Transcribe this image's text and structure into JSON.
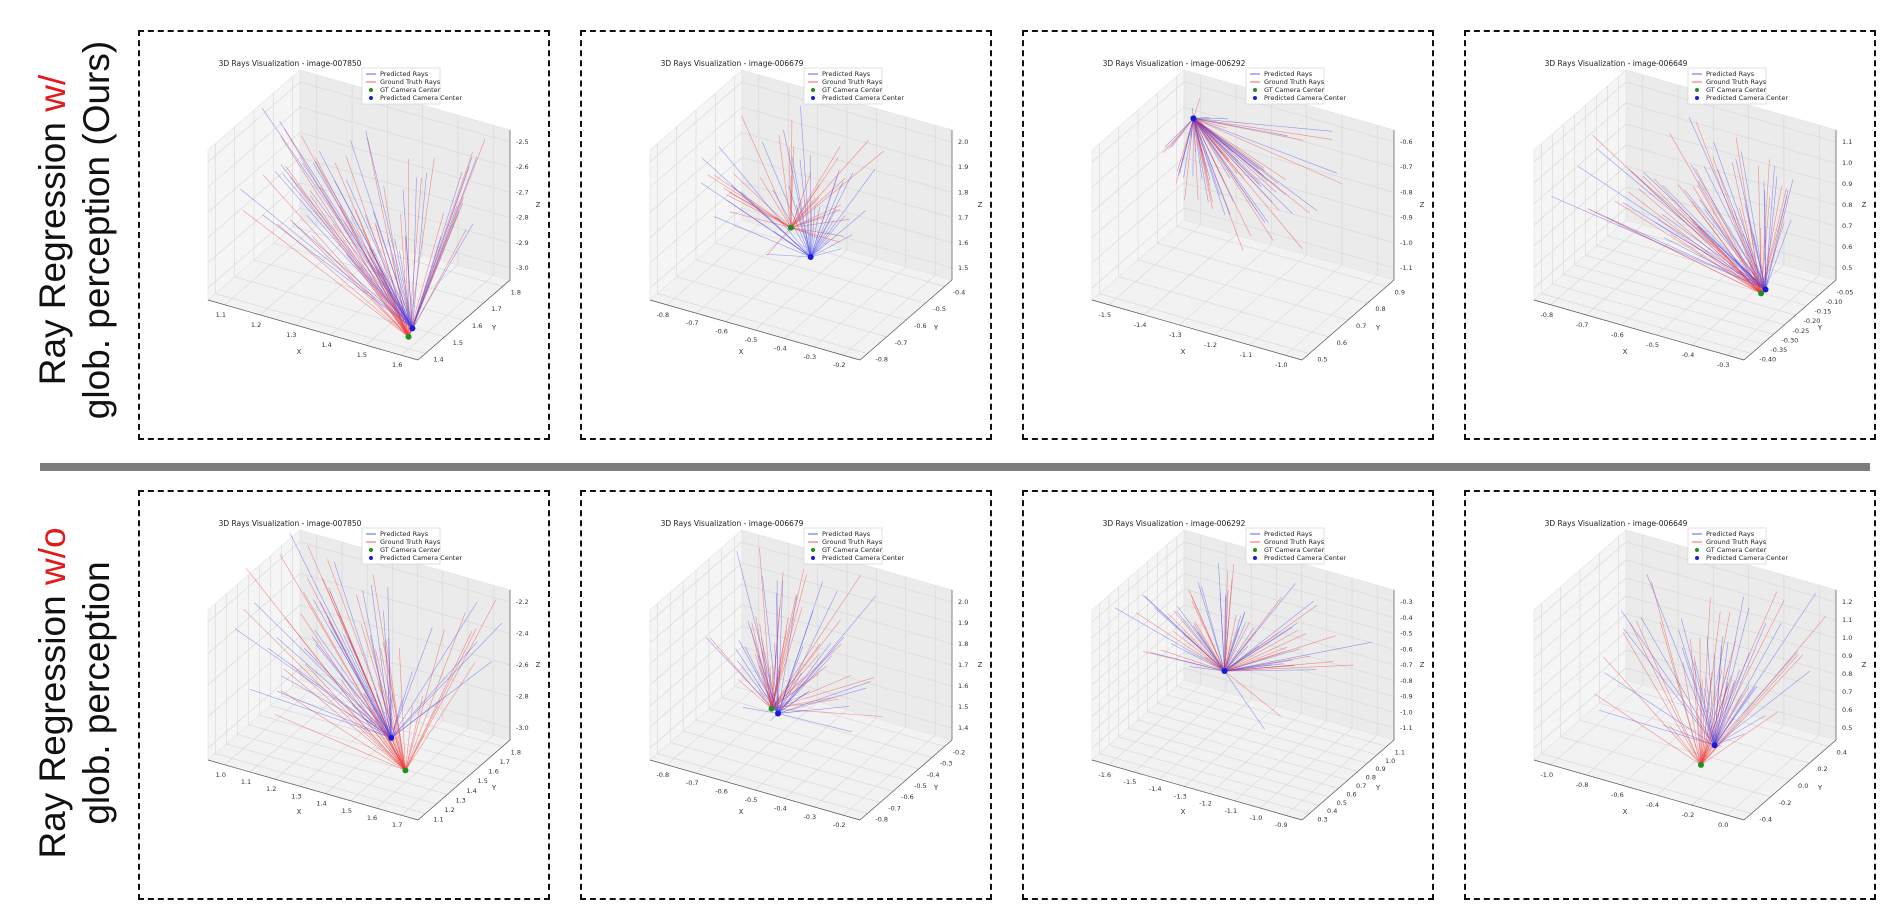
{
  "rows": [
    {
      "label_prefix": "Ray Regression ",
      "label_accent": "w/",
      "label_line2": "glob. perception (Ours)"
    },
    {
      "label_prefix": "Ray Regression ",
      "label_accent": "w/o",
      "label_line2": "glob. perception"
    }
  ],
  "colors": {
    "predicted": "#3b3bf0",
    "ground_truth": "#ef3b3b",
    "gt_center": "#1f8f1f",
    "pred_center": "#1a1adb",
    "divider": "#7d7d7d",
    "accent": "#e01b1b"
  },
  "legend": {
    "predicted": "Predicted Rays",
    "ground_truth": "Ground Truth Rays",
    "gt_center": "GT Camera Center",
    "pred_center": "Predicted Camera Center"
  },
  "chart_data": [
    {
      "type": "scatter",
      "title": "3D Rays Visualization - image-007850",
      "xlabel": "X",
      "ylabel": "Y",
      "zlabel": "Z",
      "x_ticks": [
        "1.1",
        "1.2",
        "1.3",
        "1.4",
        "1.5",
        "1.6"
      ],
      "y_ticks": [
        "1.4",
        "1.5",
        "1.6",
        "1.7",
        "1.8"
      ],
      "z_ticks": [
        "-3.0",
        "-2.9",
        "-2.8",
        "-2.7",
        "-2.6",
        "-2.5"
      ],
      "gt_center": [
        1.62,
        1.4,
        -3.0
      ],
      "pred_center": [
        1.6,
        1.42,
        -2.98
      ],
      "n_rays": 40,
      "spread": 1.0
    },
    {
      "type": "scatter",
      "title": "3D Rays Visualization - image-006679",
      "xlabel": "X",
      "ylabel": "Y",
      "zlabel": "Z",
      "x_ticks": [
        "-0.8",
        "-0.7",
        "-0.6",
        "-0.5",
        "-0.4",
        "-0.3",
        "-0.2"
      ],
      "y_ticks": [
        "-0.8",
        "-0.7",
        "-0.6",
        "-0.5",
        "-0.4"
      ],
      "z_ticks": [
        "1.5",
        "1.6",
        "1.7",
        "1.8",
        "1.9",
        "2.0"
      ],
      "gt_center": [
        -0.6,
        -0.5,
        1.6
      ],
      "pred_center": [
        -0.5,
        -0.55,
        1.55
      ],
      "n_rays": 34,
      "spread": 0.9
    },
    {
      "type": "scatter",
      "title": "3D Rays Visualization - image-006292",
      "xlabel": "X",
      "ylabel": "Y",
      "zlabel": "Z",
      "x_ticks": [
        "-1.5",
        "-1.4",
        "-1.3",
        "-1.2",
        "-1.1",
        "-1.0"
      ],
      "y_ticks": [
        "0.5",
        "0.6",
        "0.7",
        "0.8",
        "0.9"
      ],
      "z_ticks": [
        "-1.1",
        "-1.0",
        "-0.9",
        "-0.8",
        "-0.7",
        "-0.6"
      ],
      "gt_center": [
        -1.5,
        0.9,
        -0.7
      ],
      "pred_center": [
        -1.5,
        0.9,
        -0.7
      ],
      "n_rays": 36,
      "spread": 0.8
    },
    {
      "type": "scatter",
      "title": "3D Rays Visualization - image-006649",
      "xlabel": "X",
      "ylabel": "Y",
      "zlabel": "Z",
      "x_ticks": [
        "-0.8",
        "-0.7",
        "-0.6",
        "-0.5",
        "-0.4",
        "-0.3"
      ],
      "y_ticks": [
        "-0.40",
        "-0.35",
        "-0.30",
        "-0.25",
        "-0.20",
        "-0.15",
        "-0.10",
        "-0.05"
      ],
      "z_ticks": [
        "0.5",
        "0.6",
        "0.7",
        "0.8",
        "0.9",
        "1.0",
        "1.1"
      ],
      "gt_center": [
        -0.35,
        -0.2,
        0.45
      ],
      "pred_center": [
        -0.35,
        -0.18,
        0.5
      ],
      "n_rays": 38,
      "spread": 1.0
    },
    {
      "type": "scatter",
      "title": "3D Rays Visualization - image-007850",
      "xlabel": "X",
      "ylabel": "Y",
      "zlabel": "Z",
      "x_ticks": [
        "1.0",
        "1.1",
        "1.2",
        "1.3",
        "1.4",
        "1.5",
        "1.6",
        "1.7"
      ],
      "y_ticks": [
        "1.1",
        "1.2",
        "1.3",
        "1.4",
        "1.5",
        "1.6",
        "1.7",
        "1.8"
      ],
      "z_ticks": [
        "-3.0",
        "-2.8",
        "-2.6",
        "-2.4",
        "-2.2"
      ],
      "gt_center": [
        1.6,
        1.3,
        -3.0
      ],
      "pred_center": [
        1.5,
        1.4,
        -2.9
      ],
      "n_rays": 40,
      "spread": 1.1
    },
    {
      "type": "scatter",
      "title": "3D Rays Visualization - image-006679",
      "xlabel": "X",
      "ylabel": "Y",
      "zlabel": "Z",
      "x_ticks": [
        "-0.8",
        "-0.7",
        "-0.6",
        "-0.5",
        "-0.4",
        "-0.3",
        "-0.2"
      ],
      "y_ticks": [
        "-0.8",
        "-0.7",
        "-0.6",
        "-0.5",
        "-0.4",
        "-0.3",
        "-0.2"
      ],
      "z_ticks": [
        "1.4",
        "1.5",
        "1.6",
        "1.7",
        "1.8",
        "1.9",
        "2.0"
      ],
      "gt_center": [
        -0.6,
        -0.5,
        1.5
      ],
      "pred_center": [
        -0.6,
        -0.45,
        1.45
      ],
      "n_rays": 36,
      "spread": 1.0
    },
    {
      "type": "scatter",
      "title": "3D Rays Visualization - image-006292",
      "xlabel": "X",
      "ylabel": "Y",
      "zlabel": "Z",
      "x_ticks": [
        "-1.6",
        "-1.5",
        "-1.4",
        "-1.3",
        "-1.2",
        "-1.1",
        "-1.0",
        "-0.9"
      ],
      "y_ticks": [
        "0.3",
        "0.4",
        "0.5",
        "0.6",
        "0.7",
        "0.8",
        "0.9",
        "1.0",
        "1.1"
      ],
      "z_ticks": [
        "-1.1",
        "-1.0",
        "-0.9",
        "-0.8",
        "-0.7",
        "-0.6",
        "-0.5",
        "-0.4",
        "-0.3"
      ],
      "gt_center": [
        -1.4,
        0.9,
        -0.85
      ],
      "pred_center": [
        -1.4,
        0.9,
        -0.85
      ],
      "n_rays": 36,
      "spread": 0.9
    },
    {
      "type": "scatter",
      "title": "3D Rays Visualization - image-006649",
      "xlabel": "X",
      "ylabel": "Y",
      "zlabel": "Z",
      "x_ticks": [
        "-1.0",
        "-0.8",
        "-0.6",
        "-0.4",
        "-0.2",
        "0.0"
      ],
      "y_ticks": [
        "-0.4",
        "-0.2",
        "0.0",
        "0.2",
        "0.4"
      ],
      "z_ticks": [
        "0.5",
        "0.6",
        "0.7",
        "0.8",
        "0.9",
        "1.0",
        "1.1",
        "1.2"
      ],
      "gt_center": [
        -0.3,
        -0.2,
        0.5
      ],
      "pred_center": [
        -0.25,
        -0.15,
        0.6
      ],
      "n_rays": 34,
      "spread": 1.1
    }
  ]
}
